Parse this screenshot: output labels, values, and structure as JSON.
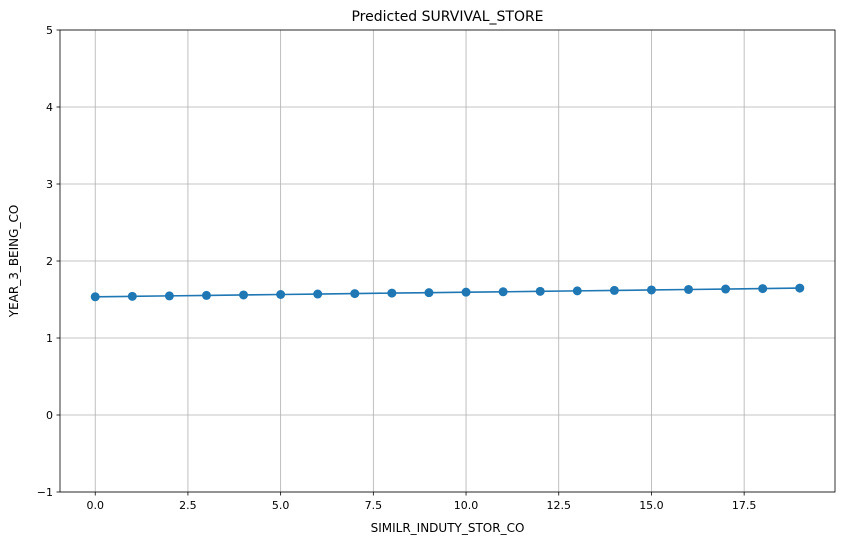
{
  "chart_data": {
    "type": "line",
    "title": "Predicted SURVIVAL_STORE",
    "xlabel": "SIMILR_INDUTY_STOR_CO",
    "ylabel": "YEAR_3_BEING_CO",
    "xlim": [
      -0.95,
      19.95
    ],
    "ylim": [
      -1,
      5
    ],
    "xticks": [
      0.0,
      2.5,
      5.0,
      7.5,
      10.0,
      12.5,
      15.0,
      17.5
    ],
    "xtick_labels": [
      "0.0",
      "2.5",
      "5.0",
      "7.5",
      "10.0",
      "12.5",
      "15.0",
      "17.5"
    ],
    "yticks": [
      -1,
      0,
      1,
      2,
      3,
      4,
      5
    ],
    "ytick_labels": [
      "−1",
      "0",
      "1",
      "2",
      "3",
      "4",
      "5"
    ],
    "grid": true,
    "series": [
      {
        "color": "#1f77b4",
        "marker": "circle",
        "x": [
          0,
          1,
          2,
          3,
          4,
          5,
          6,
          7,
          8,
          9,
          10,
          11,
          12,
          13,
          14,
          15,
          16,
          17,
          18,
          19
        ],
        "y": [
          1.535,
          1.541,
          1.547,
          1.553,
          1.559,
          1.565,
          1.571,
          1.577,
          1.583,
          1.589,
          1.595,
          1.6,
          1.606,
          1.612,
          1.618,
          1.624,
          1.63,
          1.636,
          1.642,
          1.648
        ]
      }
    ]
  }
}
